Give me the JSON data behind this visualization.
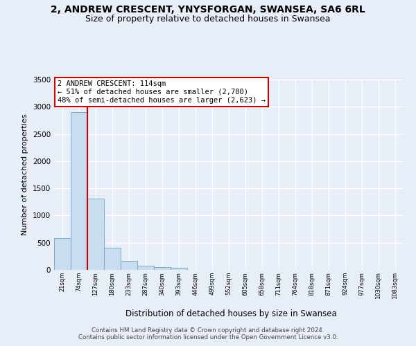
{
  "title": "2, ANDREW CRESCENT, YNYSFORGAN, SWANSEA, SA6 6RL",
  "subtitle": "Size of property relative to detached houses in Swansea",
  "xlabel": "Distribution of detached houses by size in Swansea",
  "ylabel": "Number of detached properties",
  "bin_labels": [
    "21sqm",
    "74sqm",
    "127sqm",
    "180sqm",
    "233sqm",
    "287sqm",
    "340sqm",
    "393sqm",
    "446sqm",
    "499sqm",
    "552sqm",
    "605sqm",
    "658sqm",
    "711sqm",
    "764sqm",
    "818sqm",
    "871sqm",
    "924sqm",
    "977sqm",
    "1030sqm",
    "1083sqm"
  ],
  "bar_values": [
    580,
    2900,
    1310,
    410,
    170,
    80,
    50,
    40,
    0,
    0,
    0,
    0,
    0,
    0,
    0,
    0,
    0,
    0,
    0,
    0,
    0
  ],
  "bar_color": "#c8ddf0",
  "bar_edge_color": "#7aaac8",
  "vline_x_index": 2,
  "vline_color": "#cc0000",
  "ylim": [
    0,
    3500
  ],
  "yticks": [
    0,
    500,
    1000,
    1500,
    2000,
    2500,
    3000,
    3500
  ],
  "annotation_title": "2 ANDREW CRESCENT: 114sqm",
  "annotation_line1": "← 51% of detached houses are smaller (2,780)",
  "annotation_line2": "48% of semi-detached houses are larger (2,623) →",
  "annotation_box_color": "#ffffff",
  "annotation_box_edge": "#cc0000",
  "footer_line1": "Contains HM Land Registry data © Crown copyright and database right 2024.",
  "footer_line2": "Contains public sector information licensed under the Open Government Licence v3.0.",
  "background_color": "#e8eef8",
  "plot_bg_color": "#e8eef8",
  "grid_color": "#ffffff",
  "title_fontsize": 10,
  "subtitle_fontsize": 9
}
